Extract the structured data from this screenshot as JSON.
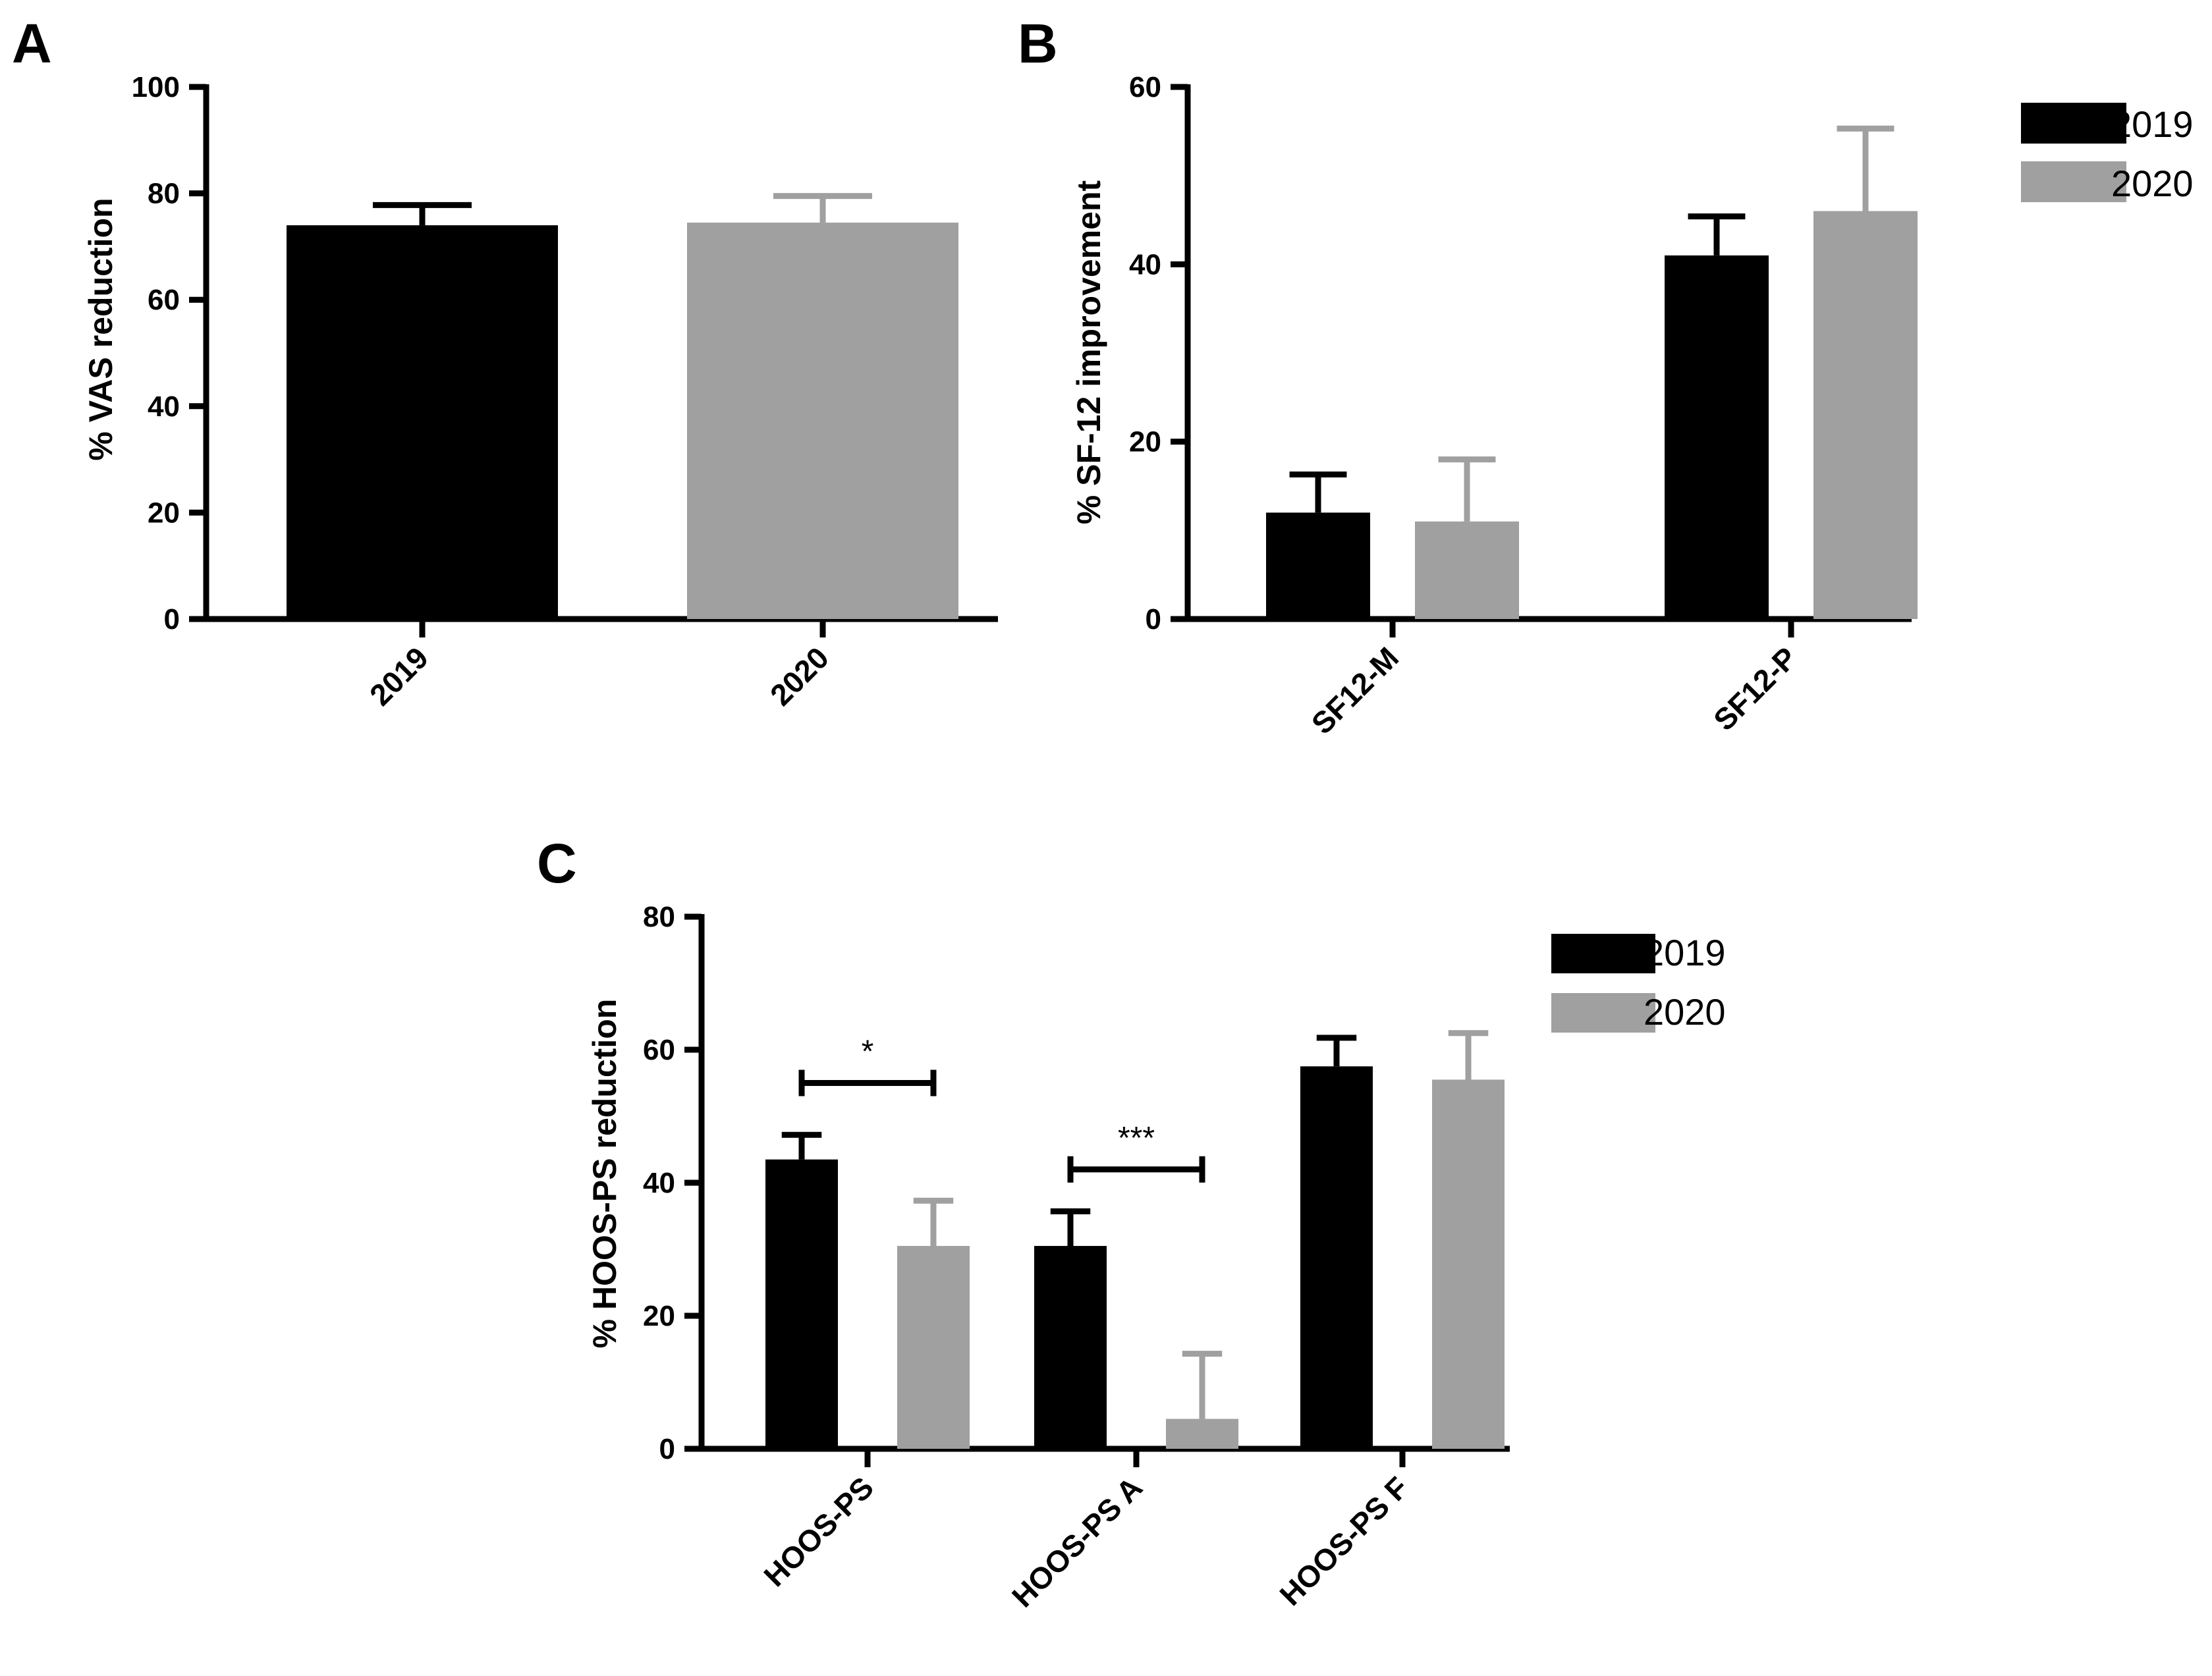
{
  "colors": {
    "c2019": "#000000",
    "c2020": "#a0a0a0",
    "axis": "#000000"
  },
  "legend": {
    "entries": [
      "2019",
      "2020"
    ],
    "placement": "top-right"
  },
  "chart_data": [
    {
      "id": "A",
      "panel_label": "A",
      "type": "bar",
      "categories": [
        "2019",
        "2020"
      ],
      "series": [
        {
          "name": "% VAS reduction",
          "values": [
            74,
            74.5
          ],
          "errors": [
            3.8,
            5
          ],
          "colors": [
            "c2019",
            "c2020"
          ]
        }
      ],
      "ylabel": "% VAS reduction",
      "ylim": [
        0,
        100
      ],
      "yticks": [
        0,
        20,
        40,
        60,
        80,
        100
      ],
      "grid": false,
      "legend": false
    },
    {
      "id": "B",
      "panel_label": "B",
      "type": "bar",
      "categories": [
        "SF12-M",
        "SF12-P"
      ],
      "series": [
        {
          "name": "2019",
          "values": [
            12,
            41
          ],
          "errors": [
            4.3,
            4.4
          ],
          "color": "c2019"
        },
        {
          "name": "2020",
          "values": [
            11,
            46
          ],
          "errors": [
            7,
            9.3
          ],
          "color": "c2020"
        }
      ],
      "ylabel": "% SF-12 improvement",
      "ylim": [
        0,
        60
      ],
      "yticks": [
        0,
        20,
        40,
        60
      ],
      "grid": false,
      "legend": true
    },
    {
      "id": "C",
      "panel_label": "C",
      "type": "bar",
      "categories": [
        "HOOS-PS",
        "HOOS-PS A",
        "HOOS-PS F"
      ],
      "series": [
        {
          "name": "2019",
          "values": [
            43.5,
            30.5,
            57.5
          ],
          "errors": [
            3.7,
            5.2,
            4.3
          ],
          "color": "c2019"
        },
        {
          "name": "2020",
          "values": [
            30.5,
            4.5,
            55.5
          ],
          "errors": [
            6.8,
            9.8,
            7
          ],
          "color": "c2020"
        }
      ],
      "ylabel": "% HOOS-PS reduction",
      "ylim": [
        0,
        80
      ],
      "yticks": [
        0,
        20,
        40,
        60,
        80
      ],
      "grid": false,
      "legend": true,
      "annotations": [
        {
          "category_index": 0,
          "text": "*",
          "y": 55
        },
        {
          "category_index": 1,
          "text": "***",
          "y": 42
        }
      ]
    }
  ]
}
